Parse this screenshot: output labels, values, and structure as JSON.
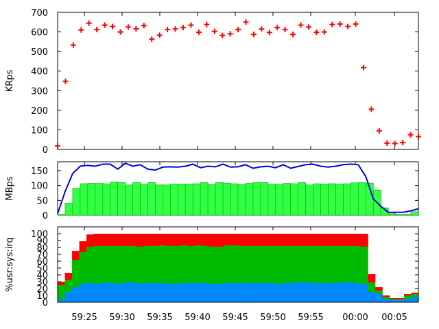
{
  "x_tick_labels": [
    "59:25",
    "59:30",
    "59:35",
    "59:40",
    "59:45",
    "59:50",
    "59:55",
    "00:00",
    "00:05"
  ],
  "chart_data": [
    {
      "type": "scatter",
      "ylabel": "KRps",
      "ylim": [
        0,
        700
      ],
      "yticks": [
        0,
        100,
        200,
        300,
        400,
        500,
        600,
        700
      ],
      "grid": false,
      "marker": "plus",
      "color": "#ff0000",
      "values": [
        18,
        348,
        533,
        610,
        645,
        612,
        635,
        628,
        600,
        625,
        616,
        632,
        563,
        583,
        612,
        615,
        622,
        635,
        598,
        638,
        603,
        582,
        590,
        612,
        650,
        587,
        615,
        597,
        622,
        612,
        587,
        635,
        625,
        598,
        600,
        638,
        640,
        628,
        640,
        418,
        205,
        95,
        32,
        30,
        35,
        75,
        65
      ]
    },
    {
      "type": "bar",
      "ylabel": "MBps",
      "ylim": [
        0,
        180
      ],
      "yticks": [
        0,
        50,
        100,
        150
      ],
      "grid": false,
      "bar_color": "#33ff44",
      "bar_edge_color": "#00bb00",
      "line_color": "#0000dd",
      "series": [
        {
          "values": [
            3,
            40,
            90,
            106,
            107,
            107,
            106,
            112,
            110,
            102,
            110,
            105,
            110,
            102,
            102,
            105,
            105,
            105,
            106,
            110,
            103,
            110,
            108,
            106,
            104,
            107,
            110,
            110,
            105,
            104,
            107,
            106,
            110,
            102,
            106,
            105,
            106,
            105,
            106,
            109,
            110,
            108,
            85,
            25,
            5,
            3,
            3,
            12
          ]
        },
        {
          "values": [
            5,
            80,
            140,
            165,
            168,
            165,
            172,
            172,
            155,
            175,
            165,
            170,
            155,
            152,
            162,
            163,
            162,
            165,
            172,
            160,
            165,
            163,
            172,
            162,
            163,
            170,
            158,
            163,
            165,
            160,
            170,
            158,
            164,
            170,
            172,
            165,
            162,
            165,
            170,
            172,
            170,
            130,
            55,
            30,
            10,
            10,
            10,
            15,
            22
          ]
        }
      ]
    },
    {
      "type": "bar",
      "ylabel": "%usr:sys:irq",
      "stacked": true,
      "ylim": [
        0,
        110
      ],
      "yticks": [
        0,
        10,
        20,
        30,
        40,
        50,
        60,
        70,
        80,
        90,
        100
      ],
      "grid": false,
      "series": [
        {
          "color": "#0088ff",
          "values": [
            5,
            15,
            22,
            27,
            28,
            27,
            29,
            28,
            27,
            29,
            29,
            27,
            28,
            28,
            28,
            27,
            27,
            28,
            28,
            28,
            28,
            27,
            27,
            28,
            28,
            28,
            28,
            28,
            28,
            28,
            27,
            28,
            28,
            29,
            29,
            28,
            28,
            28,
            28,
            29,
            29,
            28,
            27,
            15,
            12,
            5,
            3,
            3,
            5,
            8
          ]
        },
        {
          "color": "#00bb00",
          "values": [
            20,
            18,
            40,
            46,
            53,
            55,
            53,
            54,
            55,
            53,
            53,
            54,
            54,
            54,
            55,
            55,
            55,
            55,
            54,
            55,
            54,
            54,
            54,
            55,
            55,
            54,
            54,
            54,
            54,
            54,
            55,
            54,
            54,
            53,
            53,
            54,
            54,
            54,
            54,
            53,
            53,
            54,
            54,
            14,
            5,
            3,
            2,
            2,
            5,
            4
          ]
        },
        {
          "color": "#ff0000",
          "values": [
            5,
            10,
            13,
            16,
            18,
            18,
            18,
            18,
            18,
            18,
            18,
            19,
            18,
            18,
            17,
            18,
            18,
            17,
            18,
            17,
            18,
            19,
            19,
            17,
            17,
            18,
            18,
            18,
            18,
            18,
            18,
            18,
            18,
            18,
            18,
            18,
            18,
            18,
            18,
            18,
            18,
            18,
            19,
            12,
            5,
            2,
            1,
            1,
            2,
            2
          ]
        }
      ]
    }
  ]
}
